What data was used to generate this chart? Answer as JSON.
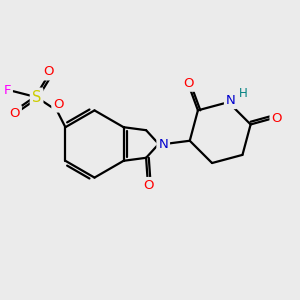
{
  "bg_color": "#ebebeb",
  "bond_color": "#000000",
  "atom_colors": {
    "O": "#ff0000",
    "N": "#0000cd",
    "S": "#cccc00",
    "F": "#ff00ff",
    "H": "#008080",
    "C": "#000000"
  },
  "figsize": [
    3.0,
    3.0
  ],
  "dpi": 100,
  "bond_lw": 1.6
}
